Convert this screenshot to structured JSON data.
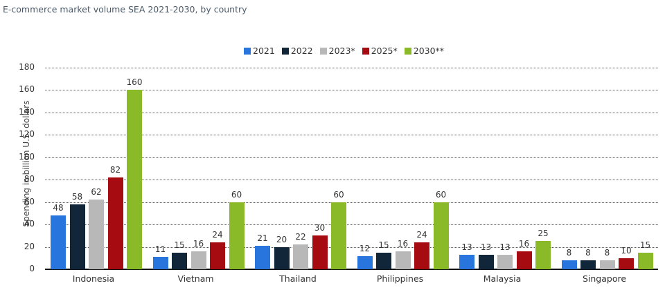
{
  "title": "E-commerce market volume SEA 2021-2030, by country",
  "legend": [
    {
      "label": "2021",
      "color": "#2876dd"
    },
    {
      "label": "2022",
      "color": "#12263a"
    },
    {
      "label": "2023*",
      "color": "#b8b8b8"
    },
    {
      "label": "2025*",
      "color": "#a50b10"
    },
    {
      "label": "2030**",
      "color": "#8aba27"
    }
  ],
  "y_axis": {
    "label": "Spending in billion U.S. dollars",
    "ticks": [
      "0",
      "20",
      "40",
      "60",
      "80",
      "100",
      "120",
      "140",
      "160",
      "180"
    ]
  },
  "chart_data": {
    "type": "bar",
    "title": "E-commerce market volume SEA 2021-2030, by country",
    "xlabel": "",
    "ylabel": "Spending in billion U.S. dollars",
    "ylim": [
      0,
      180
    ],
    "grid": true,
    "legend_position": "top",
    "categories": [
      "Indonesia",
      "Vietnam",
      "Thailand",
      "Philippines",
      "Malaysia",
      "Singapore"
    ],
    "series": [
      {
        "name": "2021",
        "color": "#2876dd",
        "values": [
          48,
          11,
          21,
          12,
          13,
          8
        ]
      },
      {
        "name": "2022",
        "color": "#12263a",
        "values": [
          58,
          15,
          20,
          15,
          13,
          8
        ]
      },
      {
        "name": "2023*",
        "color": "#b8b8b8",
        "values": [
          62,
          16,
          22,
          16,
          13,
          8
        ]
      },
      {
        "name": "2025*",
        "color": "#a50b10",
        "values": [
          82,
          24,
          30,
          24,
          16,
          10
        ]
      },
      {
        "name": "2030**",
        "color": "#8aba27",
        "values": [
          160,
          60,
          60,
          60,
          25,
          15
        ]
      }
    ]
  }
}
